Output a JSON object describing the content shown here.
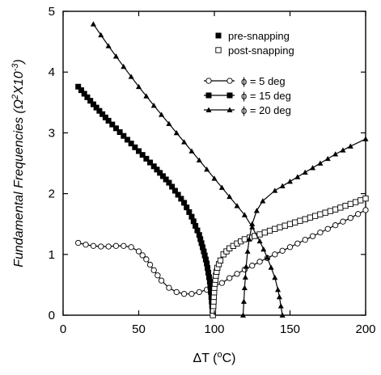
{
  "chart_data": {
    "type": "line",
    "xlabel_main": "ΔT (",
    "xlabel_sup": "o",
    "xlabel_end": "C)",
    "ylabel_main": "Fundamental Frequencies (Ω",
    "ylabel_sup1": "2",
    "ylabel_mid": "X10",
    "ylabel_sup2": "-3",
    "ylabel_end": ")",
    "xlim": [
      0,
      200
    ],
    "ylim": [
      0,
      5
    ],
    "xticks": [
      "0",
      "50",
      "100",
      "150",
      "200"
    ],
    "yticks": [
      "0",
      "1",
      "2",
      "3",
      "4",
      "5"
    ],
    "grid": false,
    "legend_marker": {
      "position": "top-right",
      "entries": [
        {
          "label": "pre-snapping",
          "marker": "filled-square"
        },
        {
          "label": "post-snapping",
          "marker": "open-square"
        }
      ]
    },
    "legend_series": {
      "position": "upper-right",
      "entries": [
        {
          "label": "ϕ =   5 deg",
          "marker": "open-circle"
        },
        {
          "label": "ϕ = 15 deg",
          "marker": "filled-square"
        },
        {
          "label": "ϕ = 20 deg",
          "marker": "filled-triangle"
        }
      ]
    },
    "series": [
      {
        "name": "ϕ =   5 deg",
        "marker": "open-circle",
        "points": [
          [
            10,
            1.19
          ],
          [
            15,
            1.16
          ],
          [
            20,
            1.14
          ],
          [
            25,
            1.13
          ],
          [
            30,
            1.13
          ],
          [
            35,
            1.14
          ],
          [
            40,
            1.14
          ],
          [
            45,
            1.12
          ],
          [
            50,
            1.05
          ],
          [
            55,
            0.92
          ],
          [
            60,
            0.74
          ],
          [
            65,
            0.57
          ],
          [
            70,
            0.45
          ],
          [
            75,
            0.38
          ],
          [
            80,
            0.35
          ],
          [
            85,
            0.35
          ],
          [
            90,
            0.38
          ],
          [
            95,
            0.42
          ],
          [
            100,
            0.48
          ],
          [
            105,
            0.53
          ],
          [
            110,
            0.61
          ],
          [
            120,
            0.75
          ],
          [
            130,
            0.88
          ],
          [
            140,
            1.0
          ],
          [
            150,
            1.12
          ],
          [
            160,
            1.24
          ],
          [
            170,
            1.36
          ],
          [
            180,
            1.48
          ],
          [
            190,
            1.6
          ],
          [
            200,
            1.73
          ]
        ]
      },
      {
        "name": "ϕ = 15 deg pre-snapping",
        "marker": "filled-square",
        "points": [
          [
            10,
            3.76
          ],
          [
            20,
            3.47
          ],
          [
            30,
            3.2
          ],
          [
            40,
            2.95
          ],
          [
            50,
            2.7
          ],
          [
            60,
            2.45
          ],
          [
            70,
            2.18
          ],
          [
            80,
            1.85
          ],
          [
            85,
            1.62
          ],
          [
            90,
            1.32
          ],
          [
            93,
            1.05
          ],
          [
            95,
            0.85
          ],
          [
            97,
            0.55
          ],
          [
            98,
            0.3
          ],
          [
            99,
            0.0
          ]
        ]
      },
      {
        "name": "ϕ = 15 deg post-snapping",
        "marker": "open-square",
        "points": [
          [
            99,
            0.0
          ],
          [
            100,
            0.45
          ],
          [
            101,
            0.65
          ],
          [
            102,
            0.78
          ],
          [
            104,
            0.9
          ],
          [
            106,
            1.0
          ],
          [
            110,
            1.1
          ],
          [
            115,
            1.18
          ],
          [
            120,
            1.25
          ],
          [
            130,
            1.33
          ],
          [
            140,
            1.42
          ],
          [
            150,
            1.5
          ],
          [
            160,
            1.58
          ],
          [
            170,
            1.66
          ],
          [
            180,
            1.74
          ],
          [
            190,
            1.83
          ],
          [
            200,
            1.92
          ]
        ]
      },
      {
        "name": "ϕ = 20 deg pre-snapping",
        "marker": "filled-triangle",
        "points": [
          [
            20,
            4.79
          ],
          [
            30,
            4.43
          ],
          [
            40,
            4.09
          ],
          [
            50,
            3.76
          ],
          [
            60,
            3.45
          ],
          [
            70,
            3.15
          ],
          [
            80,
            2.85
          ],
          [
            90,
            2.55
          ],
          [
            100,
            2.25
          ],
          [
            110,
            1.95
          ],
          [
            120,
            1.65
          ],
          [
            125,
            1.45
          ],
          [
            130,
            1.22
          ],
          [
            135,
            0.95
          ],
          [
            140,
            0.62
          ],
          [
            142,
            0.42
          ],
          [
            143,
            0.3
          ],
          [
            144,
            0.15
          ],
          [
            145,
            0.0
          ]
        ]
      },
      {
        "name": "ϕ = 20 deg post-snapping",
        "marker": "filled-triangle",
        "points": [
          [
            119,
            0.0
          ],
          [
            120,
            0.45
          ],
          [
            121,
            0.8
          ],
          [
            122,
            1.05
          ],
          [
            123,
            1.25
          ],
          [
            125,
            1.5
          ],
          [
            128,
            1.72
          ],
          [
            132,
            1.88
          ],
          [
            140,
            2.05
          ],
          [
            150,
            2.2
          ],
          [
            160,
            2.35
          ],
          [
            170,
            2.5
          ],
          [
            180,
            2.65
          ],
          [
            190,
            2.78
          ],
          [
            200,
            2.9
          ]
        ]
      }
    ]
  }
}
